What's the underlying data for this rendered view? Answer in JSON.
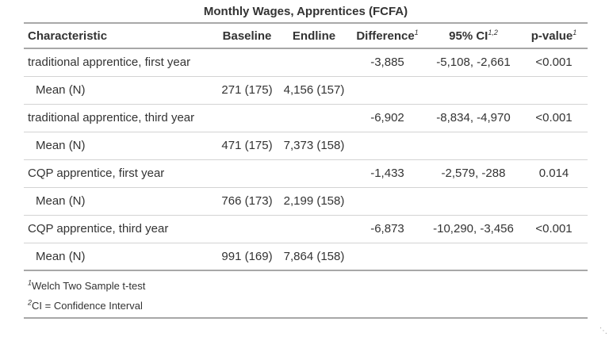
{
  "title": "Monthly Wages, Apprentices (FCFA)",
  "headers": {
    "characteristic": "Characteristic",
    "baseline": "Baseline",
    "endline": "Endline",
    "difference": "Difference",
    "difference_sup": "1",
    "ci": "95% CI",
    "ci_sup": "1,2",
    "pvalue": "p-value",
    "pvalue_sup": "1"
  },
  "rows": [
    {
      "label": "traditional apprentice, first year",
      "baseline": "",
      "endline": "",
      "difference": "-3,885",
      "ci": "-5,108, -2,661",
      "pvalue": "<0.001"
    },
    {
      "label": "Mean (N)",
      "baseline": "271 (175)",
      "endline": "4,156 (157)",
      "difference": "",
      "ci": "",
      "pvalue": ""
    },
    {
      "label": "traditional apprentice, third year",
      "baseline": "",
      "endline": "",
      "difference": "-6,902",
      "ci": "-8,834, -4,970",
      "pvalue": "<0.001"
    },
    {
      "label": "Mean (N)",
      "baseline": "471 (175)",
      "endline": "7,373 (158)",
      "difference": "",
      "ci": "",
      "pvalue": ""
    },
    {
      "label": "CQP apprentice, first year",
      "baseline": "",
      "endline": "",
      "difference": "-1,433",
      "ci": "-2,579, -288",
      "pvalue": "0.014"
    },
    {
      "label": "Mean (N)",
      "baseline": "766 (173)",
      "endline": "2,199 (158)",
      "difference": "",
      "ci": "",
      "pvalue": ""
    },
    {
      "label": "CQP apprentice, third year",
      "baseline": "",
      "endline": "",
      "difference": "-6,873",
      "ci": "-10,290, -3,456",
      "pvalue": "<0.001"
    },
    {
      "label": "Mean (N)",
      "baseline": "991 (169)",
      "endline": "7,864 (158)",
      "difference": "",
      "ci": "",
      "pvalue": ""
    }
  ],
  "footnotes": [
    {
      "mark": "1",
      "text": "Welch Two Sample t-test"
    },
    {
      "mark": "2",
      "text": "CI = Confidence Interval"
    }
  ]
}
